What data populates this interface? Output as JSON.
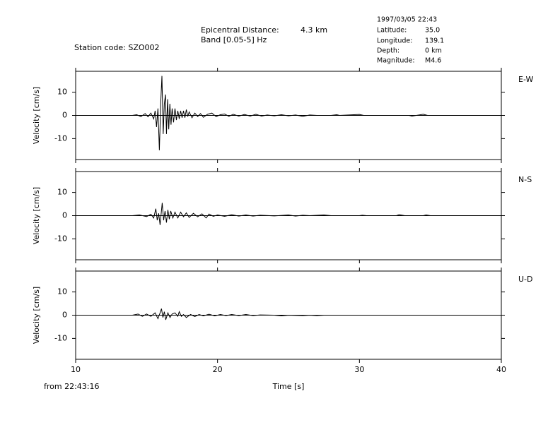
{
  "header": {
    "station": "Station code: SZO002",
    "epicentral_label": "Epicentral Distance:",
    "epicentral_value": "4.3 km",
    "band": "Band [0.05-5] Hz",
    "datetime": "1997/03/05 22:43",
    "info": [
      [
        "Latitude:",
        "35.0"
      ],
      [
        "Longitude:",
        "139.1"
      ],
      [
        "Depth:",
        "0 km"
      ],
      [
        "Magnitude:",
        "M4.6"
      ]
    ],
    "time_origin": "from 22:43:16"
  },
  "chart_data": [
    {
      "type": "line",
      "title": "E-W",
      "ylabel": "Velocity [cm/s]",
      "color": "#000000",
      "xlim": [
        10,
        40
      ],
      "xticks": [
        10,
        20,
        30,
        40
      ],
      "ylim": [
        -19,
        19
      ],
      "yticks": [
        -10,
        0,
        10
      ],
      "x": [
        14.0,
        14.3,
        14.6,
        14.9,
        15.1,
        15.3,
        15.5,
        15.6,
        15.7,
        15.8,
        15.9,
        16.0,
        16.08,
        16.17,
        16.25,
        16.33,
        16.4,
        16.48,
        16.56,
        16.64,
        16.72,
        16.8,
        16.9,
        17.0,
        17.1,
        17.2,
        17.3,
        17.4,
        17.5,
        17.6,
        17.7,
        17.8,
        17.9,
        18.0,
        18.2,
        18.4,
        18.6,
        18.8,
        19.0,
        19.3,
        19.6,
        19.9,
        20.2,
        20.5,
        20.8,
        21.1,
        21.5,
        21.9,
        22.3,
        22.7,
        23.1,
        23.5,
        24.0,
        24.5,
        25.0,
        25.5,
        26.0,
        26.5,
        27.0,
        28.0,
        28.4,
        28.6,
        30.0,
        30.3,
        33.5,
        33.7,
        34.2,
        34.5,
        34.8,
        35.0
      ],
      "values": [
        0,
        0.3,
        -0.5,
        0.8,
        -0.6,
        1,
        -1.5,
        2,
        -5,
        3,
        -15,
        6,
        17,
        -8,
        5,
        9,
        -8,
        7,
        -6,
        5,
        -4,
        3,
        -3,
        3,
        -2,
        2,
        -1.5,
        2,
        -1,
        2,
        -1,
        2.5,
        -0.5,
        1.5,
        -1,
        1,
        -0.5,
        0.8,
        -0.8,
        0.5,
        1,
        -0.5,
        0.3,
        0.6,
        -0.4,
        0.5,
        -0.3,
        0.4,
        -0.3,
        0.5,
        -0.3,
        0.2,
        -0.2,
        0.3,
        -0.2,
        0.2,
        -0.4,
        0.2,
        0,
        0,
        0.3,
        0,
        0.4,
        0,
        0,
        -0.3,
        0.2,
        0.5,
        0,
        0
      ]
    },
    {
      "type": "line",
      "title": "N-S",
      "ylabel": "Velocity [cm/s]",
      "color": "#000000",
      "xlim": [
        10,
        40
      ],
      "xticks": [
        10,
        20,
        30,
        40
      ],
      "ylim": [
        -19,
        19
      ],
      "yticks": [
        -10,
        0,
        10
      ],
      "x": [
        14.0,
        14.5,
        15.0,
        15.3,
        15.5,
        15.65,
        15.75,
        15.85,
        15.95,
        16.1,
        16.2,
        16.3,
        16.4,
        16.5,
        16.6,
        16.7,
        16.85,
        17.0,
        17.2,
        17.4,
        17.6,
        17.8,
        18.0,
        18.3,
        18.6,
        18.9,
        19.2,
        19.4,
        19.7,
        20.0,
        20.5,
        21.0,
        21.5,
        22.0,
        22.5,
        23.0,
        24.0,
        25.0,
        25.5,
        26.0,
        26.5,
        27.5,
        28.0,
        30.0,
        30.2,
        30.5,
        32.6,
        32.8,
        33.2,
        34.5,
        34.7,
        35.0
      ],
      "values": [
        0,
        0.3,
        -0.4,
        0.6,
        -1,
        3,
        -2,
        1,
        -4,
        5.5,
        -2,
        2,
        -3,
        2.5,
        -1.5,
        2,
        -1,
        1.5,
        -1,
        1.5,
        -0.5,
        1.2,
        -0.8,
        1,
        -0.5,
        0.8,
        -1,
        0.7,
        -0.3,
        0.3,
        -0.3,
        0.4,
        -0.2,
        0.3,
        -0.2,
        0.2,
        -0.1,
        0.3,
        -0.2,
        0.2,
        0,
        0.3,
        0,
        0,
        0.2,
        0,
        0,
        0.4,
        0,
        0,
        0.3,
        0
      ]
    },
    {
      "type": "line",
      "title": "U-D",
      "ylabel": "Velocity [cm/s]",
      "xlabel": "Time [s]",
      "color": "#000000",
      "xlim": [
        10,
        40
      ],
      "xticks": [
        10,
        20,
        30,
        40
      ],
      "ylim": [
        -19,
        19
      ],
      "yticks": [
        -10,
        0,
        10
      ],
      "x": [
        14.0,
        14.4,
        14.7,
        15.0,
        15.3,
        15.6,
        15.8,
        15.95,
        16.05,
        16.15,
        16.25,
        16.35,
        16.5,
        16.65,
        16.8,
        17.0,
        17.2,
        17.3,
        17.45,
        17.6,
        17.8,
        18.1,
        18.4,
        18.7,
        19.0,
        19.4,
        19.8,
        20.2,
        20.6,
        21.0,
        21.5,
        22.0,
        22.5,
        23.0,
        24.0,
        24.5,
        25.0,
        26.0,
        26.5,
        27.0,
        27.5
      ],
      "values": [
        0,
        0.5,
        -0.5,
        0.5,
        -0.5,
        1,
        -1.5,
        1,
        2.8,
        -1,
        1.5,
        -2,
        1,
        -1,
        0.5,
        1,
        -0.5,
        1.5,
        -0.5,
        0.3,
        -1,
        0.3,
        -0.6,
        0.3,
        -0.3,
        0.4,
        -0.3,
        0.3,
        -0.2,
        0.3,
        -0.2,
        0.3,
        -0.2,
        0.1,
        0,
        -0.3,
        0,
        -0.2,
        0,
        -0.2,
        0
      ]
    }
  ]
}
